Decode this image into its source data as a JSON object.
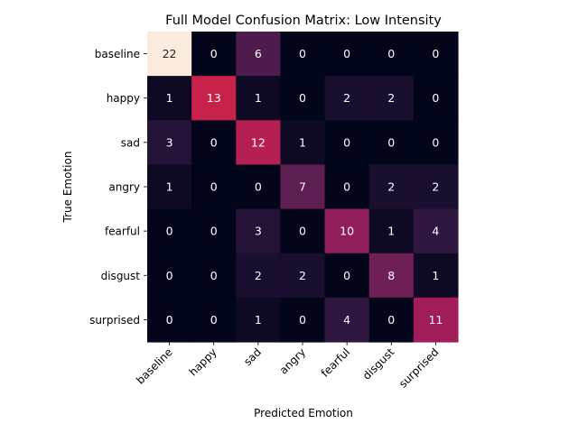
{
  "chart_data": {
    "type": "heatmap",
    "title": "Full Model Confusion Matrix: Low Intensity",
    "xlabel": "Predicted Emotion",
    "ylabel": "True Emotion",
    "x_categories": [
      "baseline",
      "happy",
      "sad",
      "angry",
      "fearful",
      "disgust",
      "surprised"
    ],
    "y_categories": [
      "baseline",
      "happy",
      "sad",
      "angry",
      "fearful",
      "disgust",
      "surprised"
    ],
    "values": [
      [
        22,
        0,
        6,
        0,
        0,
        0,
        0
      ],
      [
        1,
        13,
        1,
        0,
        2,
        2,
        0
      ],
      [
        3,
        0,
        12,
        1,
        0,
        0,
        0
      ],
      [
        1,
        0,
        0,
        7,
        0,
        2,
        2
      ],
      [
        0,
        0,
        3,
        0,
        10,
        1,
        4
      ],
      [
        0,
        0,
        2,
        2,
        0,
        8,
        1
      ],
      [
        0,
        0,
        1,
        0,
        4,
        0,
        11
      ]
    ],
    "vmin": 0,
    "vmax": 22,
    "colormap": "rocket",
    "colorbar": false,
    "grid": false
  }
}
